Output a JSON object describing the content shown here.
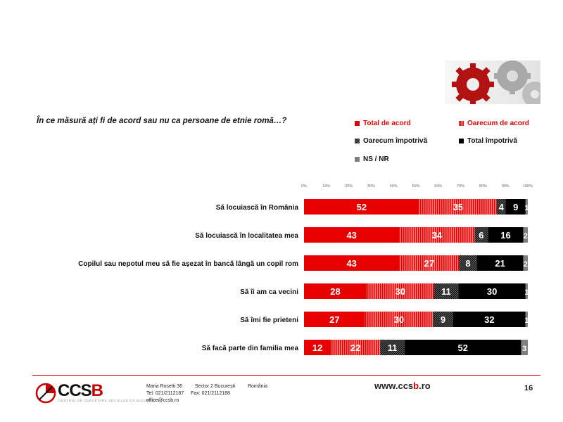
{
  "question": "În ce măsură ați fi de acord sau nu ca persoane de etnie romă…?",
  "colors": {
    "total_acord": "#e60000",
    "oarecum_acord": "#ef3b3b",
    "oarecum_impotriva": "#1a1a1a",
    "total_impotriva": "#000000",
    "ns_nr": "#808080",
    "footer_line": "#cc0000"
  },
  "legend": [
    {
      "label": "Total de acord",
      "color": "#e60000",
      "pattern": "solid",
      "text_color": "#e60000"
    },
    {
      "label": "Oarecum de acord",
      "color": "#ef3b3b",
      "pattern": "stripes",
      "text_color": "#e60000"
    },
    {
      "label": "Oarecum împotrivă",
      "color": "#1a1a1a",
      "pattern": "checker",
      "text_color": "#111111"
    },
    {
      "label": "Total împotrivă",
      "color": "#000000",
      "pattern": "solid",
      "text_color": "#111111"
    },
    {
      "label": "NS / NR",
      "color": "#808080",
      "pattern": "solid",
      "text_color": "#111111"
    }
  ],
  "chart_data": {
    "type": "bar",
    "orientation": "horizontal",
    "stacked": "percent",
    "x_ticks": [
      "0%",
      "10%",
      "20%",
      "30%",
      "40%",
      "50%",
      "60%",
      "70%",
      "80%",
      "90%",
      "100%"
    ],
    "xlim": [
      0,
      100
    ],
    "categories": [
      "Să locuiască în România",
      "Să locuiască în localitatea mea",
      "Copilul sau nepotul meu să fie așezat în bancă lângă un copil rom",
      "Să îi am ca vecini",
      "Să îmi fie prieteni",
      "Să facă parte din familia mea"
    ],
    "series": [
      {
        "name": "Total de acord",
        "values": [
          52,
          43,
          43,
          28,
          27,
          12
        ]
      },
      {
        "name": "Oarecum de acord",
        "values": [
          35,
          34,
          27,
          30,
          30,
          22
        ]
      },
      {
        "name": "Oarecum împotrivă",
        "values": [
          4,
          6,
          8,
          11,
          9,
          11
        ]
      },
      {
        "name": "Total împotrivă",
        "values": [
          9,
          16,
          21,
          30,
          32,
          52
        ]
      },
      {
        "name": "NS / NR",
        "values": [
          1,
          2,
          2,
          1,
          1,
          3
        ]
      }
    ],
    "legend_position": "top-right",
    "grid": false
  },
  "footer": {
    "logo_text": "CCSB",
    "logo_tagline": "CENTRUL DE CERCETARE SOCIOLOGICĂ BUCUREȘTI",
    "address_street": "Maria Rosetti 36",
    "address_sector": "Sector 2  București",
    "address_country": "România",
    "tel": "Tel: 021/2112187",
    "fax": "Fax: 021/2112188",
    "email": "office@ccsb.ro",
    "website_prefix": "www.ccs",
    "website_highlight": "b",
    "website_suffix": ".ro",
    "page_number": "16"
  }
}
